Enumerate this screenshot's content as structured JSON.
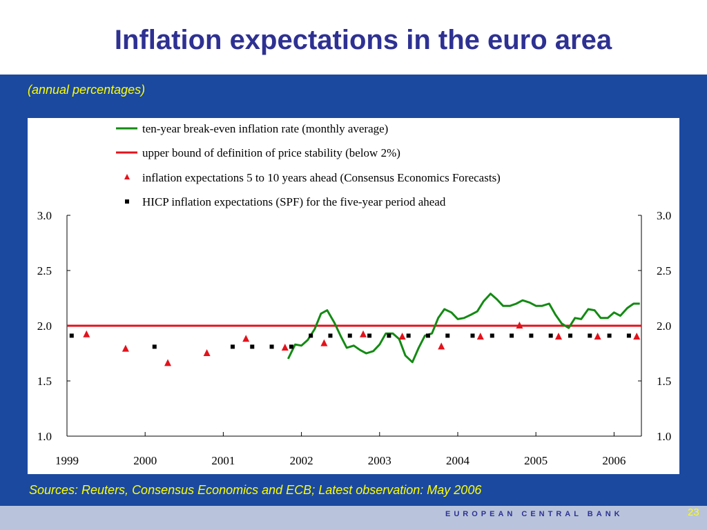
{
  "slide": {
    "title": "Inflation expectations in the euro area",
    "subtitle": "(annual percentages)",
    "sources": "Sources: Reuters, Consensus Economics and ECB; Latest observation: May 2006",
    "footer_org": "EUROPEAN CENTRAL BANK",
    "page_number": "23"
  },
  "colors": {
    "title": "#2e3192",
    "background_blue": "#1b49a0",
    "yellow_text": "#ffff00",
    "breakeven_line": "#138a13",
    "upper_bound_line": "#e3121b",
    "consensus_marker": "#e3121b",
    "spf_marker": "#000000"
  },
  "chart_data": {
    "type": "line",
    "legend_position": "top",
    "legend": [
      {
        "label": "ten-year break-even inflation rate (monthly average)",
        "symbol": "green-line"
      },
      {
        "label": "upper bound of definition of price stability (below 2%)",
        "symbol": "red-line"
      },
      {
        "label": "inflation expectations 5 to 10 years ahead (Consensus Economics Forecasts)",
        "symbol": "red-triangle"
      },
      {
        "label": "HICP inflation expectations (SPF) for the five-year period ahead",
        "symbol": "black-square"
      }
    ],
    "x_ticks": [
      "1999",
      "2000",
      "2001",
      "2002",
      "2003",
      "2004",
      "2005",
      "2006"
    ],
    "xlim": [
      1999,
      2006.35
    ],
    "ylim": [
      1.0,
      3.0
    ],
    "y_ticks": [
      "1.0",
      "1.5",
      "2.0",
      "2.5",
      "3.0"
    ],
    "grid": false,
    "series": [
      {
        "name": "ten-year break-even inflation rate (monthly average)",
        "kind": "line",
        "x": [
          2001.83,
          2001.92,
          2002.0,
          2002.08,
          2002.17,
          2002.25,
          2002.33,
          2002.42,
          2002.5,
          2002.58,
          2002.67,
          2002.75,
          2002.83,
          2002.92,
          2003.0,
          2003.08,
          2003.17,
          2003.25,
          2003.33,
          2003.42,
          2003.5,
          2003.58,
          2003.67,
          2003.75,
          2003.83,
          2003.92,
          2004.0,
          2004.08,
          2004.17,
          2004.25,
          2004.33,
          2004.42,
          2004.5,
          2004.58,
          2004.67,
          2004.75,
          2004.83,
          2004.92,
          2005.0,
          2005.08,
          2005.17,
          2005.25,
          2005.33,
          2005.42,
          2005.5,
          2005.58,
          2005.67,
          2005.75,
          2005.83,
          2005.92,
          2006.0,
          2006.08,
          2006.17,
          2006.25,
          2006.33
        ],
        "y": [
          1.7,
          1.83,
          1.82,
          1.87,
          1.97,
          2.11,
          2.14,
          2.03,
          1.91,
          1.8,
          1.82,
          1.78,
          1.75,
          1.77,
          1.83,
          1.93,
          1.93,
          1.88,
          1.73,
          1.67,
          1.8,
          1.91,
          1.93,
          2.07,
          2.15,
          2.12,
          2.06,
          2.07,
          2.1,
          2.13,
          2.22,
          2.29,
          2.24,
          2.18,
          2.18,
          2.2,
          2.23,
          2.21,
          2.18,
          2.18,
          2.2,
          2.1,
          2.02,
          1.98,
          2.07,
          2.06,
          2.15,
          2.14,
          2.07,
          2.07,
          2.12,
          2.09,
          2.16,
          2.2,
          2.2
        ]
      },
      {
        "name": "upper bound of definition of price stability (below 2%)",
        "kind": "hline",
        "y": 2.0
      },
      {
        "name": "inflation expectations 5 to 10 years ahead (Consensus Economics Forecasts)",
        "kind": "triangle",
        "x": [
          1999.25,
          1999.75,
          2000.29,
          2000.79,
          2001.29,
          2001.79,
          2002.29,
          2002.79,
          2003.29,
          2003.79,
          2004.29,
          2004.79,
          2005.29,
          2005.79,
          2006.29
        ],
        "y": [
          1.92,
          1.79,
          1.66,
          1.75,
          1.88,
          1.8,
          1.84,
          1.92,
          1.9,
          1.81,
          1.9,
          2.0,
          1.9,
          1.9,
          1.9
        ]
      },
      {
        "name": "HICP inflation expectations (SPF) for the five-year period ahead",
        "kind": "square",
        "x": [
          1999.06,
          2000.12,
          2001.12,
          2001.37,
          2001.62,
          2001.87,
          2002.12,
          2002.37,
          2002.62,
          2002.87,
          2003.12,
          2003.37,
          2003.62,
          2003.87,
          2004.19,
          2004.44,
          2004.69,
          2004.94,
          2005.19,
          2005.44,
          2005.69,
          2005.94,
          2006.19
        ],
        "y": [
          1.91,
          1.81,
          1.81,
          1.81,
          1.81,
          1.81,
          1.91,
          1.91,
          1.91,
          1.91,
          1.91,
          1.91,
          1.91,
          1.91,
          1.91,
          1.91,
          1.91,
          1.91,
          1.91,
          1.91,
          1.91,
          1.91,
          1.91
        ]
      }
    ]
  }
}
